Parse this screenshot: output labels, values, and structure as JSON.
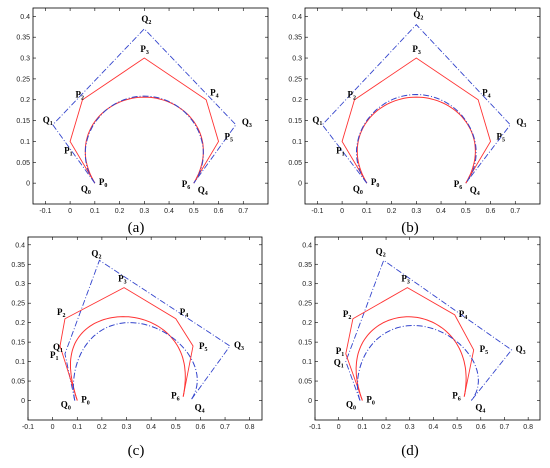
{
  "chart_data": [
    {
      "type": "line",
      "caption": "(a)",
      "xlim": [
        -0.15,
        0.8
      ],
      "ylim": [
        -0.05,
        0.42
      ],
      "xticks": [
        -0.1,
        0,
        0.1,
        0.2,
        0.3,
        0.4,
        0.5,
        0.6,
        0.7
      ],
      "yticks": [
        0,
        0.05,
        0.1,
        0.15,
        0.2,
        0.25,
        0.3,
        0.35,
        0.4
      ],
      "control_polygon_P": {
        "color": "#ff3333",
        "points": [
          {
            "label": "P",
            "sub": "0",
            "x": 0.1,
            "y": 0.0
          },
          {
            "label": "P",
            "sub": "1",
            "x": 0.0,
            "y": 0.1
          },
          {
            "label": "P",
            "sub": "2",
            "x": 0.05,
            "y": 0.2
          },
          {
            "label": "P",
            "sub": "3",
            "x": 0.3,
            "y": 0.3
          },
          {
            "label": "P",
            "sub": "4",
            "x": 0.55,
            "y": 0.2
          },
          {
            "label": "P",
            "sub": "5",
            "x": 0.6,
            "y": 0.1
          },
          {
            "label": "P",
            "sub": "6",
            "x": 0.5,
            "y": 0.0
          }
        ]
      },
      "control_polygon_Q": {
        "color": "#3344cc",
        "points": [
          {
            "label": "Q",
            "sub": "0",
            "x": 0.1,
            "y": 0.0
          },
          {
            "label": "Q",
            "sub": "1",
            "x": -0.07,
            "y": 0.14
          },
          {
            "label": "Q",
            "sub": "2",
            "x": 0.3,
            "y": 0.37
          },
          {
            "label": "Q",
            "sub": "3",
            "x": 0.67,
            "y": 0.14
          },
          {
            "label": "Q",
            "sub": "4",
            "x": 0.5,
            "y": 0.0
          }
        ]
      }
    },
    {
      "type": "line",
      "caption": "(b)",
      "xlim": [
        -0.15,
        0.8
      ],
      "ylim": [
        -0.05,
        0.42
      ],
      "xticks": [
        -0.1,
        0,
        0.1,
        0.2,
        0.3,
        0.4,
        0.5,
        0.6,
        0.7
      ],
      "yticks": [
        0,
        0.05,
        0.1,
        0.15,
        0.2,
        0.25,
        0.3,
        0.35,
        0.4
      ],
      "control_polygon_P": {
        "color": "#ff3333",
        "points": [
          {
            "label": "P",
            "sub": "0",
            "x": 0.1,
            "y": 0.0
          },
          {
            "label": "P",
            "sub": "1",
            "x": 0.0,
            "y": 0.1
          },
          {
            "label": "P",
            "sub": "2",
            "x": 0.05,
            "y": 0.2
          },
          {
            "label": "P",
            "sub": "3",
            "x": 0.3,
            "y": 0.3
          },
          {
            "label": "P",
            "sub": "4",
            "x": 0.55,
            "y": 0.2
          },
          {
            "label": "P",
            "sub": "5",
            "x": 0.6,
            "y": 0.1
          },
          {
            "label": "P",
            "sub": "6",
            "x": 0.5,
            "y": 0.0
          }
        ]
      },
      "control_polygon_Q": {
        "color": "#3344cc",
        "points": [
          {
            "label": "Q",
            "sub": "0",
            "x": 0.1,
            "y": 0.0
          },
          {
            "label": "Q",
            "sub": "1",
            "x": -0.08,
            "y": 0.14
          },
          {
            "label": "Q",
            "sub": "2",
            "x": 0.3,
            "y": 0.38
          },
          {
            "label": "Q",
            "sub": "3",
            "x": 0.68,
            "y": 0.14
          },
          {
            "label": "Q",
            "sub": "4",
            "x": 0.5,
            "y": 0.0
          }
        ]
      }
    },
    {
      "type": "line",
      "caption": "(c)",
      "xlim": [
        -0.1,
        0.85
      ],
      "ylim": [
        -0.05,
        0.42
      ],
      "xticks": [
        -0.1,
        0,
        0.1,
        0.2,
        0.3,
        0.4,
        0.5,
        0.6,
        0.7,
        0.8
      ],
      "yticks": [
        0,
        0.05,
        0.1,
        0.15,
        0.2,
        0.25,
        0.3,
        0.35,
        0.4
      ],
      "control_polygon_P": {
        "color": "#ff3333",
        "points": [
          {
            "label": "P",
            "sub": "0",
            "x": 0.1,
            "y": 0.0
          },
          {
            "label": "P",
            "sub": "1",
            "x": 0.03,
            "y": 0.14
          },
          {
            "label": "P",
            "sub": "2",
            "x": 0.05,
            "y": 0.21
          },
          {
            "label": "P",
            "sub": "3",
            "x": 0.29,
            "y": 0.29
          },
          {
            "label": "P",
            "sub": "4",
            "x": 0.5,
            "y": 0.21
          },
          {
            "label": "P",
            "sub": "5",
            "x": 0.57,
            "y": 0.14
          },
          {
            "label": "P",
            "sub": "6",
            "x": 0.53,
            "y": 0.01
          }
        ]
      },
      "control_polygon_Q": {
        "color": "#3344cc",
        "points": [
          {
            "label": "Q",
            "sub": "0",
            "x": 0.09,
            "y": 0.0
          },
          {
            "label": "Q",
            "sub": "1",
            "x": 0.05,
            "y": 0.12
          },
          {
            "label": "Q",
            "sub": "2",
            "x": 0.19,
            "y": 0.36
          },
          {
            "label": "Q",
            "sub": "3",
            "x": 0.72,
            "y": 0.14
          },
          {
            "label": "Q",
            "sub": "4",
            "x": 0.56,
            "y": 0.0
          }
        ]
      }
    },
    {
      "type": "line",
      "caption": "(d)",
      "xlim": [
        -0.1,
        0.85
      ],
      "ylim": [
        -0.05,
        0.42
      ],
      "xticks": [
        -0.1,
        0,
        0.1,
        0.2,
        0.3,
        0.4,
        0.5,
        0.6,
        0.7,
        0.8
      ],
      "yticks": [
        0,
        0.05,
        0.1,
        0.15,
        0.2,
        0.25,
        0.3,
        0.35,
        0.4
      ],
      "control_polygon_P": {
        "color": "#ff3333",
        "points": [
          {
            "label": "P",
            "sub": "0",
            "x": 0.1,
            "y": 0.0
          },
          {
            "label": "P",
            "sub": "1",
            "x": 0.03,
            "y": 0.12
          },
          {
            "label": "P",
            "sub": "2",
            "x": 0.06,
            "y": 0.21
          },
          {
            "label": "P",
            "sub": "3",
            "x": 0.29,
            "y": 0.29
          },
          {
            "label": "P",
            "sub": "4",
            "x": 0.49,
            "y": 0.22
          },
          {
            "label": "P",
            "sub": "5",
            "x": 0.57,
            "y": 0.13
          },
          {
            "label": "P",
            "sub": "6",
            "x": 0.53,
            "y": 0.01
          }
        ]
      },
      "control_polygon_Q": {
        "color": "#3344cc",
        "points": [
          {
            "label": "Q",
            "sub": "0",
            "x": 0.09,
            "y": 0.0
          },
          {
            "label": "Q",
            "sub": "1",
            "x": 0.03,
            "y": 0.1
          },
          {
            "label": "Q",
            "sub": "2",
            "x": 0.19,
            "y": 0.36
          },
          {
            "label": "Q",
            "sub": "3",
            "x": 0.73,
            "y": 0.13
          },
          {
            "label": "Q",
            "sub": "4",
            "x": 0.56,
            "y": 0.0
          }
        ]
      }
    }
  ]
}
